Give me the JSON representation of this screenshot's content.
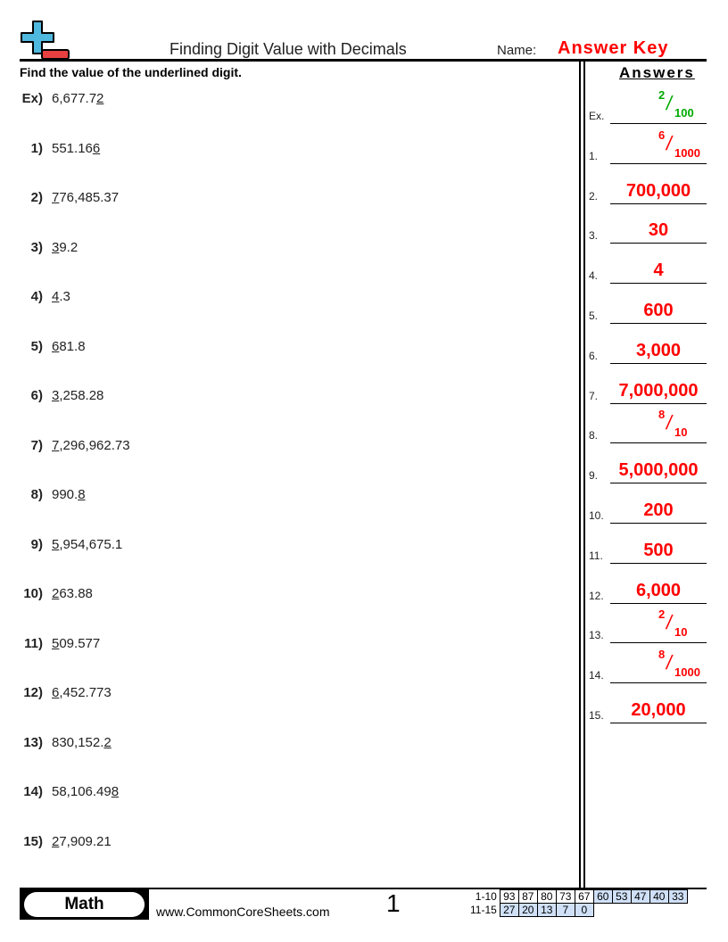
{
  "header": {
    "title": "Finding Digit Value with Decimals",
    "name_label": "Name:",
    "name_value": "Answer Key"
  },
  "instructions": "Find the value of the underlined digit.",
  "answers_heading": "Answers",
  "problems": [
    {
      "label": "Ex)",
      "pre": "6,677.7",
      "u": "2",
      "post": ""
    },
    {
      "label": "1)",
      "pre": "551.16",
      "u": "6",
      "post": ""
    },
    {
      "label": "2)",
      "pre": "",
      "u": "7",
      "post": "76,485.37"
    },
    {
      "label": "3)",
      "pre": "",
      "u": "3",
      "post": "9.2"
    },
    {
      "label": "4)",
      "pre": "",
      "u": "4",
      "post": ".3"
    },
    {
      "label": "5)",
      "pre": "",
      "u": "6",
      "post": "81.8"
    },
    {
      "label": "6)",
      "pre": "",
      "u": "3",
      "post": ",258.28"
    },
    {
      "label": "7)",
      "pre": "",
      "u": "7",
      "post": ",296,962.73"
    },
    {
      "label": "8)",
      "pre": "990.",
      "u": "8",
      "post": ""
    },
    {
      "label": "9)",
      "pre": "",
      "u": "5",
      "post": ",954,675.1"
    },
    {
      "label": "10)",
      "pre": "",
      "u": "2",
      "post": "63.88"
    },
    {
      "label": "11)",
      "pre": "",
      "u": "5",
      "post": "09.577"
    },
    {
      "label": "12)",
      "pre": "",
      "u": "6",
      "post": ",452.773"
    },
    {
      "label": "13)",
      "pre": "830,152.",
      "u": "2",
      "post": ""
    },
    {
      "label": "14)",
      "pre": "58,106.49",
      "u": "8",
      "post": ""
    },
    {
      "label": "15)",
      "pre": "",
      "u": "2",
      "post": "7,909.21"
    }
  ],
  "answers": [
    {
      "label": "Ex.",
      "num": "2",
      "den": "100",
      "color": "#00aa00"
    },
    {
      "label": "1.",
      "num": "6",
      "den": "1000"
    },
    {
      "label": "2.",
      "value": "700,000"
    },
    {
      "label": "3.",
      "value": "30"
    },
    {
      "label": "4.",
      "value": "4"
    },
    {
      "label": "5.",
      "value": "600"
    },
    {
      "label": "6.",
      "value": "3,000"
    },
    {
      "label": "7.",
      "value": "7,000,000"
    },
    {
      "label": "8.",
      "num": "8",
      "den": "10"
    },
    {
      "label": "9.",
      "value": "5,000,000"
    },
    {
      "label": "10.",
      "value": "200"
    },
    {
      "label": "11.",
      "value": "500"
    },
    {
      "label": "12.",
      "value": "6,000"
    },
    {
      "label": "13.",
      "num": "2",
      "den": "10"
    },
    {
      "label": "14.",
      "num": "8",
      "den": "1000"
    },
    {
      "label": "15.",
      "value": "20,000"
    }
  ],
  "footer": {
    "brand": "Math",
    "site": "www.CommonCoreSheets.com",
    "page": "1",
    "score_rows": [
      {
        "label": "1-10",
        "cells": [
          "93",
          "87",
          "80",
          "73",
          "67",
          "60",
          "53",
          "47",
          "40",
          "33"
        ]
      },
      {
        "label": "11-15",
        "cells": [
          "27",
          "20",
          "13",
          "7",
          "0"
        ]
      }
    ]
  },
  "colors": {
    "answer": "#ff0000",
    "example": "#00aa00",
    "score_highlight": "#cfe0f7",
    "logo_plus": "#4fb8de",
    "logo_minus": "#e84040"
  }
}
